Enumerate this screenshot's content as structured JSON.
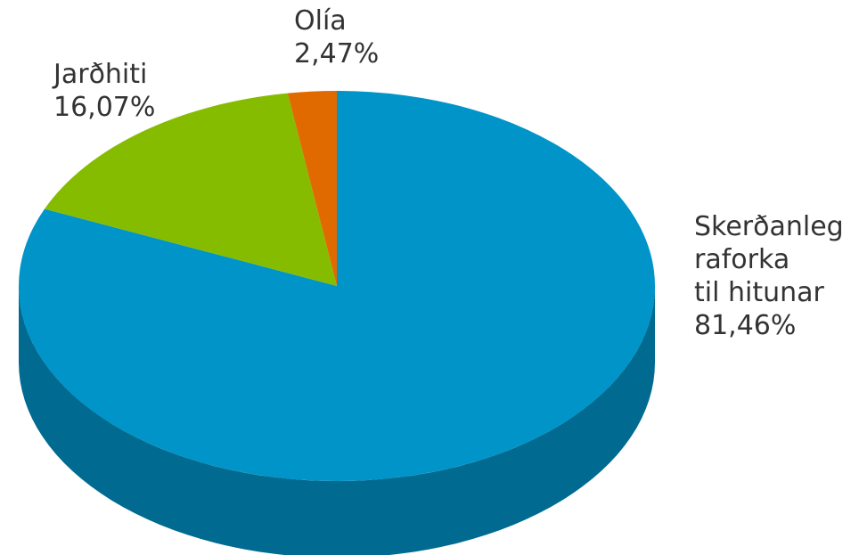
{
  "chart_data": {
    "type": "pie",
    "style": "3d",
    "title": "",
    "series": [
      {
        "slices": [
          {
            "label_lines": [
              "Skerðanleg",
              "raforka",
              "til hitunar"
            ],
            "value_text": "81,46%",
            "value": 81.46,
            "color": "#0094c8",
            "side_color": "#006a91"
          },
          {
            "label_lines": [
              "Jarðhiti"
            ],
            "value_text": "16,07%",
            "value": 16.07,
            "color": "#86bc00",
            "side_color": "#5f8600"
          },
          {
            "label_lines": [
              "Olía"
            ],
            "value_text": "2,47%",
            "value": 2.47,
            "color": "#e06a00",
            "side_color": "#a44d00"
          }
        ]
      }
    ]
  }
}
